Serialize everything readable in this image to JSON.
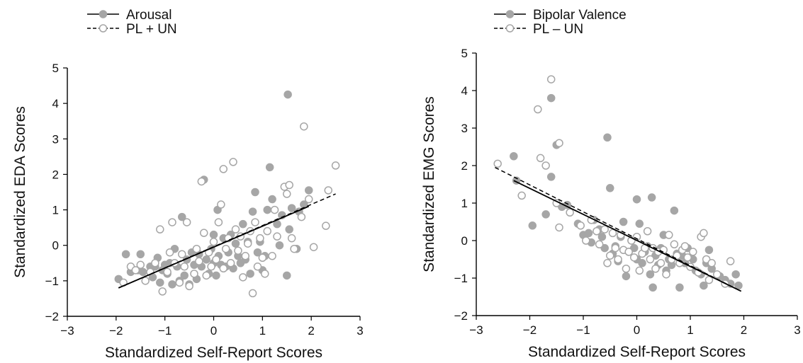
{
  "chart_data": [
    {
      "type": "scatter",
      "xlabel": "Standardized Self-Report Scores",
      "ylabel": "Standardized EDA Scores",
      "xlim": [
        -3,
        3
      ],
      "ylim": [
        -2,
        5
      ],
      "xticks": [
        "−3",
        "−2",
        "−1",
        "0",
        "1",
        "2",
        "3"
      ],
      "yticks": [
        "−2",
        "−1",
        "0",
        "1",
        "2",
        "3",
        "4",
        "5"
      ],
      "legend_position": "top-left",
      "grid": false,
      "series": [
        {
          "name": "Arousal",
          "marker": "filled",
          "line_style": "solid",
          "fit_line": [
            [
              -1.95,
              -1.2
            ],
            [
              1.95,
              1.1
            ]
          ],
          "points": [
            [
              -1.95,
              -0.95
            ],
            [
              -1.8,
              -0.25
            ],
            [
              -1.7,
              -0.75
            ],
            [
              -1.55,
              -0.7
            ],
            [
              -1.5,
              -0.25
            ],
            [
              -1.45,
              -0.75
            ],
            [
              -1.3,
              -0.6
            ],
            [
              -1.25,
              -0.9
            ],
            [
              -1.2,
              -0.6
            ],
            [
              -1.15,
              -0.35
            ],
            [
              -1.1,
              -1.05
            ],
            [
              -1.05,
              -0.7
            ],
            [
              -1.0,
              -0.55
            ],
            [
              -0.95,
              -0.8
            ],
            [
              -0.9,
              -0.5
            ],
            [
              -0.85,
              -1.1
            ],
            [
              -0.8,
              -0.1
            ],
            [
              -0.75,
              -0.6
            ],
            [
              -0.7,
              -1.0
            ],
            [
              -0.65,
              0.8
            ],
            [
              -0.6,
              -0.85
            ],
            [
              -0.55,
              -0.4
            ],
            [
              -0.5,
              -1.1
            ],
            [
              -0.45,
              -0.2
            ],
            [
              -0.4,
              -0.55
            ],
            [
              -0.35,
              -0.95
            ],
            [
              -0.3,
              -0.25
            ],
            [
              -0.25,
              -0.6
            ],
            [
              -0.2,
              1.85
            ],
            [
              -0.15,
              -0.4
            ],
            [
              -0.1,
              -0.8
            ],
            [
              -0.05,
              -0.1
            ],
            [
              0.0,
              -0.5
            ],
            [
              0.0,
              0.3
            ],
            [
              0.05,
              -0.85
            ],
            [
              0.08,
              1.0
            ],
            [
              0.1,
              -0.3
            ],
            [
              0.15,
              -0.55
            ],
            [
              0.2,
              0.2
            ],
            [
              0.25,
              -0.6
            ],
            [
              0.3,
              -0.2
            ],
            [
              0.35,
              0.3
            ],
            [
              0.4,
              -0.65
            ],
            [
              0.45,
              0.05
            ],
            [
              0.5,
              -0.3
            ],
            [
              0.55,
              -0.5
            ],
            [
              0.6,
              0.6
            ],
            [
              0.65,
              -0.4
            ],
            [
              0.7,
              0.1
            ],
            [
              0.75,
              -0.8
            ],
            [
              0.8,
              0.95
            ],
            [
              0.85,
              1.5
            ],
            [
              0.9,
              -0.2
            ],
            [
              0.95,
              0.1
            ],
            [
              1.0,
              -0.7
            ],
            [
              1.05,
              -0.3
            ],
            [
              1.1,
              1.0
            ],
            [
              1.15,
              2.2
            ],
            [
              1.2,
              1.3
            ],
            [
              1.3,
              0.6
            ],
            [
              1.35,
              0.0
            ],
            [
              1.4,
              0.85
            ],
            [
              1.5,
              -0.85
            ],
            [
              1.52,
              4.25
            ],
            [
              1.55,
              0.45
            ],
            [
              1.6,
              1.05
            ],
            [
              1.7,
              -0.1
            ],
            [
              1.75,
              0.95
            ],
            [
              1.85,
              1.15
            ],
            [
              1.95,
              1.55
            ]
          ]
        },
        {
          "name": "PL + UN",
          "marker": "open",
          "line_style": "dashed",
          "fit_line": [
            [
              -1.95,
              -1.2
            ],
            [
              2.5,
              1.45
            ]
          ],
          "points": [
            [
              -1.85,
              -1.05
            ],
            [
              -1.7,
              -0.6
            ],
            [
              -1.6,
              -0.7
            ],
            [
              -1.5,
              -0.55
            ],
            [
              -1.4,
              -1.0
            ],
            [
              -1.3,
              -0.75
            ],
            [
              -1.2,
              -0.5
            ],
            [
              -1.1,
              0.45
            ],
            [
              -1.05,
              -1.3
            ],
            [
              -0.95,
              -0.75
            ],
            [
              -0.9,
              -0.2
            ],
            [
              -0.85,
              0.65
            ],
            [
              -0.8,
              -0.5
            ],
            [
              -0.7,
              -1.05
            ],
            [
              -0.65,
              -0.25
            ],
            [
              -0.6,
              -0.6
            ],
            [
              -0.55,
              0.65
            ],
            [
              -0.5,
              -1.15
            ],
            [
              -0.4,
              -0.8
            ],
            [
              -0.35,
              -0.1
            ],
            [
              -0.3,
              -0.45
            ],
            [
              -0.25,
              1.8
            ],
            [
              -0.2,
              0.35
            ],
            [
              -0.15,
              -0.85
            ],
            [
              -0.1,
              -0.2
            ],
            [
              -0.05,
              -0.6
            ],
            [
              0.0,
              0.1
            ],
            [
              0.05,
              -0.4
            ],
            [
              0.1,
              0.65
            ],
            [
              0.15,
              1.15
            ],
            [
              0.2,
              -0.65
            ],
            [
              0.2,
              2.15
            ],
            [
              0.25,
              -0.1
            ],
            [
              0.3,
              0.2
            ],
            [
              0.35,
              -0.5
            ],
            [
              0.4,
              2.35
            ],
            [
              0.45,
              0.45
            ],
            [
              0.5,
              -0.15
            ],
            [
              0.55,
              0.25
            ],
            [
              0.6,
              -0.9
            ],
            [
              0.65,
              -0.3
            ],
            [
              0.7,
              0.05
            ],
            [
              0.75,
              0.4
            ],
            [
              0.8,
              -1.35
            ],
            [
              0.85,
              0.65
            ],
            [
              0.9,
              -0.6
            ],
            [
              0.95,
              0.2
            ],
            [
              1.0,
              -0.35
            ],
            [
              1.05,
              -0.8
            ],
            [
              1.1,
              0.4
            ],
            [
              1.2,
              -0.3
            ],
            [
              1.25,
              1.0
            ],
            [
              1.3,
              0.25
            ],
            [
              1.45,
              1.65
            ],
            [
              1.5,
              1.45
            ],
            [
              1.55,
              1.7
            ],
            [
              1.6,
              0.2
            ],
            [
              1.65,
              -0.1
            ],
            [
              1.8,
              0.8
            ],
            [
              1.85,
              3.35
            ],
            [
              1.95,
              1.3
            ],
            [
              2.05,
              -0.05
            ],
            [
              2.3,
              0.55
            ],
            [
              2.35,
              1.55
            ],
            [
              2.5,
              2.25
            ]
          ]
        }
      ]
    },
    {
      "type": "scatter",
      "xlabel": "Standardized Self-Report Scores",
      "ylabel": "Standardized EMG Scores",
      "xlim": [
        -3,
        3
      ],
      "ylim": [
        -2,
        5
      ],
      "xticks": [
        "−3",
        "−2",
        "−1",
        "0",
        "1",
        "2",
        "3"
      ],
      "yticks": [
        "−2",
        "−1",
        "0",
        "1",
        "2",
        "3",
        "4",
        "5"
      ],
      "legend_position": "top-left",
      "grid": false,
      "series": [
        {
          "name": "Bipolar Valence",
          "marker": "filled",
          "line_style": "solid",
          "fit_line": [
            [
              -2.3,
              1.6
            ],
            [
              1.95,
              -1.35
            ]
          ],
          "points": [
            [
              -2.3,
              2.25
            ],
            [
              -2.25,
              1.6
            ],
            [
              -1.95,
              0.4
            ],
            [
              -1.7,
              0.7
            ],
            [
              -1.6,
              1.7
            ],
            [
              -1.6,
              3.8
            ],
            [
              -1.5,
              2.55
            ],
            [
              -1.4,
              0.9
            ],
            [
              -1.3,
              0.95
            ],
            [
              -1.1,
              0.45
            ],
            [
              -1.0,
              0.15
            ],
            [
              -0.9,
              0.2
            ],
            [
              -0.85,
              -0.05
            ],
            [
              -0.8,
              0.55
            ],
            [
              -0.7,
              0.3
            ],
            [
              -0.65,
              0.1
            ],
            [
              -0.6,
              -0.2
            ],
            [
              -0.55,
              2.75
            ],
            [
              -0.5,
              1.4
            ],
            [
              -0.45,
              -0.35
            ],
            [
              -0.4,
              -0.15
            ],
            [
              -0.35,
              -0.55
            ],
            [
              -0.3,
              0.1
            ],
            [
              -0.25,
              0.5
            ],
            [
              -0.2,
              -0.95
            ],
            [
              -0.15,
              -0.3
            ],
            [
              -0.1,
              0.0
            ],
            [
              -0.05,
              -0.2
            ],
            [
              0.0,
              -0.5
            ],
            [
              0.0,
              1.1
            ],
            [
              0.05,
              0.45
            ],
            [
              0.1,
              -0.6
            ],
            [
              0.15,
              -0.3
            ],
            [
              0.2,
              -0.15
            ],
            [
              0.25,
              -0.9
            ],
            [
              0.28,
              1.15
            ],
            [
              0.3,
              -1.25
            ],
            [
              0.35,
              -0.4
            ],
            [
              0.4,
              -0.65
            ],
            [
              0.45,
              -0.2
            ],
            [
              0.5,
              0.15
            ],
            [
              0.55,
              -0.8
            ],
            [
              0.6,
              -0.5
            ],
            [
              0.65,
              -0.65
            ],
            [
              0.7,
              0.8
            ],
            [
              0.75,
              -0.35
            ],
            [
              0.8,
              -1.25
            ],
            [
              0.85,
              -0.4
            ],
            [
              0.9,
              -0.6
            ],
            [
              0.95,
              -0.2
            ],
            [
              1.05,
              -0.5
            ],
            [
              1.1,
              -0.8
            ],
            [
              1.2,
              -0.9
            ],
            [
              1.25,
              -1.2
            ],
            [
              1.3,
              -0.6
            ],
            [
              1.35,
              -0.25
            ],
            [
              1.4,
              -0.75
            ],
            [
              1.55,
              -0.95
            ],
            [
              1.65,
              -1.05
            ],
            [
              1.75,
              -1.15
            ],
            [
              1.85,
              -0.9
            ],
            [
              1.9,
              -1.2
            ]
          ]
        },
        {
          "name": "PL – UN",
          "marker": "open",
          "line_style": "dashed",
          "fit_line": [
            [
              -2.65,
              1.95
            ],
            [
              1.95,
              -1.35
            ]
          ],
          "points": [
            [
              -2.6,
              2.05
            ],
            [
              -2.15,
              1.2
            ],
            [
              -1.85,
              3.5
            ],
            [
              -1.8,
              2.2
            ],
            [
              -1.7,
              2.0
            ],
            [
              -1.6,
              4.3
            ],
            [
              -1.5,
              1.0
            ],
            [
              -1.45,
              2.6
            ],
            [
              -1.45,
              0.35
            ],
            [
              -1.25,
              0.75
            ],
            [
              -1.05,
              0.4
            ],
            [
              -0.95,
              0.0
            ],
            [
              -0.85,
              0.55
            ],
            [
              -0.75,
              0.25
            ],
            [
              -0.7,
              -0.1
            ],
            [
              -0.6,
              0.3
            ],
            [
              -0.55,
              -0.6
            ],
            [
              -0.5,
              -0.4
            ],
            [
              -0.45,
              0.2
            ],
            [
              -0.4,
              -0.2
            ],
            [
              -0.35,
              -0.5
            ],
            [
              -0.3,
              0.15
            ],
            [
              -0.25,
              -0.25
            ],
            [
              -0.2,
              -0.75
            ],
            [
              -0.15,
              -0.3
            ],
            [
              -0.1,
              0.0
            ],
            [
              -0.05,
              -0.45
            ],
            [
              0.0,
              0.1
            ],
            [
              0.05,
              -0.8
            ],
            [
              0.1,
              -0.35
            ],
            [
              0.15,
              -0.2
            ],
            [
              0.2,
              0.25
            ],
            [
              0.25,
              -0.5
            ],
            [
              0.3,
              -0.2
            ],
            [
              0.35,
              -0.75
            ],
            [
              0.4,
              -0.3
            ],
            [
              0.45,
              -0.6
            ],
            [
              0.5,
              -0.25
            ],
            [
              0.55,
              -0.9
            ],
            [
              0.6,
              0.15
            ],
            [
              0.65,
              -0.5
            ],
            [
              0.7,
              -0.1
            ],
            [
              0.75,
              -0.4
            ],
            [
              0.8,
              -0.6
            ],
            [
              0.85,
              -0.25
            ],
            [
              0.9,
              -0.15
            ],
            [
              0.95,
              -0.45
            ],
            [
              1.0,
              -0.7
            ],
            [
              1.05,
              -0.3
            ],
            [
              1.15,
              -0.85
            ],
            [
              1.2,
              0.1
            ],
            [
              1.25,
              0.2
            ],
            [
              1.3,
              -0.5
            ],
            [
              1.35,
              -1.05
            ],
            [
              1.4,
              -0.6
            ],
            [
              1.5,
              -0.9
            ],
            [
              1.65,
              -1.15
            ],
            [
              1.75,
              -0.55
            ]
          ]
        }
      ]
    }
  ]
}
